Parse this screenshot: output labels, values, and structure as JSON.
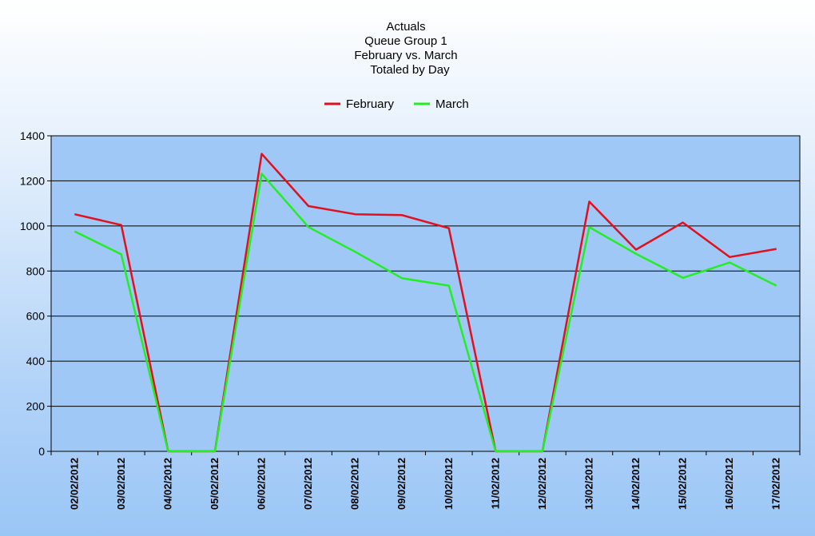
{
  "chart_data": {
    "type": "line",
    "title_lines": [
      "Actuals",
      "Queue Group 1",
      "February vs. March",
      "Totaled by Day"
    ],
    "categories": [
      "02/02/2012",
      "03/02/2012",
      "04/02/2012",
      "05/02/2012",
      "06/02/2012",
      "07/02/2012",
      "08/02/2012",
      "09/02/2012",
      "10/02/2012",
      "11/02/2012",
      "12/02/2012",
      "13/02/2012",
      "14/02/2012",
      "15/02/2012",
      "16/02/2012",
      "17/02/2012"
    ],
    "series": [
      {
        "name": "February",
        "color": "#e0101e",
        "values": [
          1052,
          1004,
          0,
          0,
          1320,
          1088,
          1052,
          1048,
          990,
          0,
          0,
          1108,
          895,
          1015,
          862,
          898
        ]
      },
      {
        "name": "March",
        "color": "#22ee22",
        "values": [
          976,
          874,
          0,
          0,
          1232,
          995,
          885,
          768,
          735,
          0,
          0,
          995,
          876,
          770,
          838,
          735
        ]
      }
    ],
    "xlabel": "",
    "ylabel": "",
    "ylim": [
      0,
      1400
    ],
    "yticks": [
      0,
      200,
      400,
      600,
      800,
      1000,
      1200,
      1400
    ],
    "grid": true,
    "legend_position": "top-center",
    "plot_background": "#a0c8f6"
  }
}
